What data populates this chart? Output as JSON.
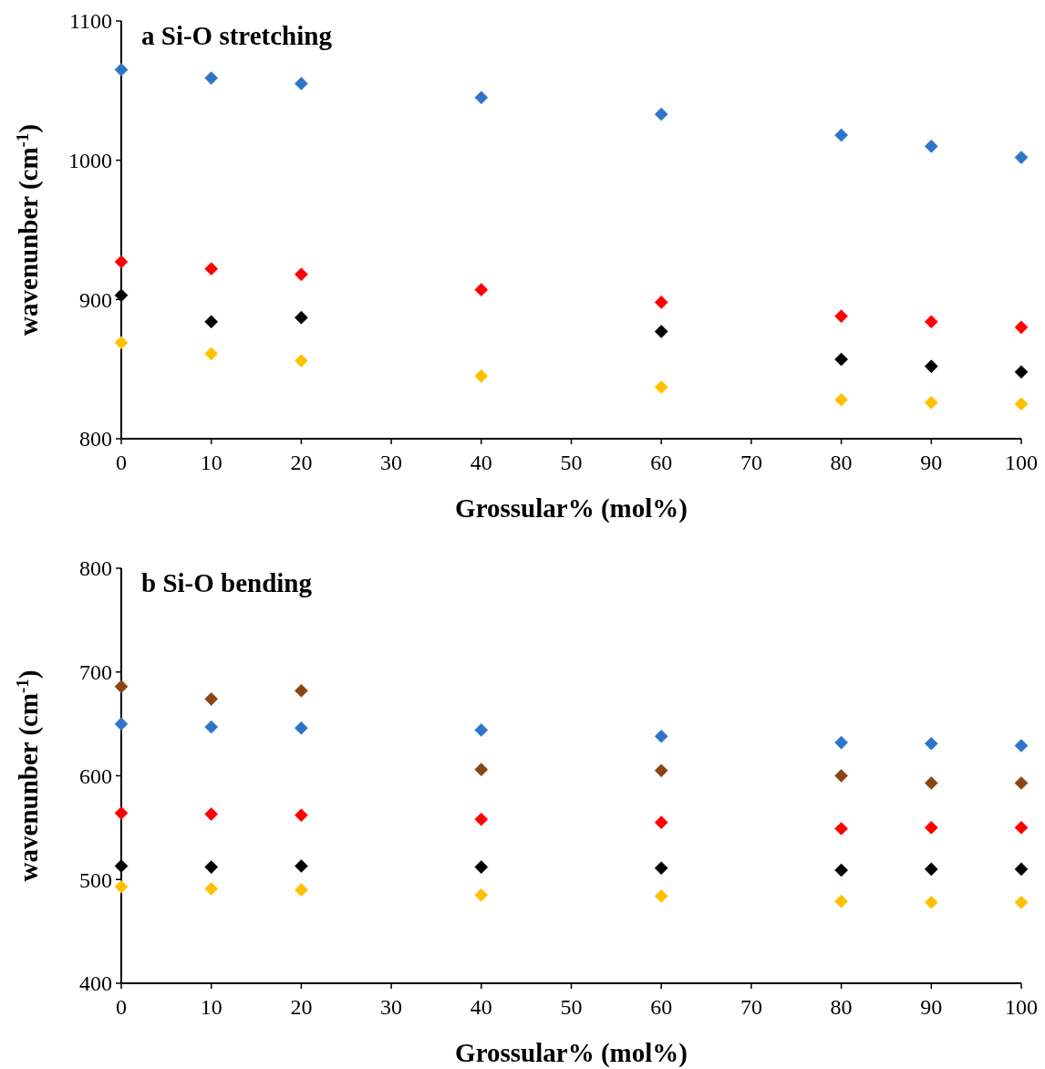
{
  "chart_data": [
    {
      "type": "scatter",
      "title": "a  Si-O stretching",
      "xlabel": "Grossular% (mol%)",
      "ylabel": "wavenunber (cm$^{-1}$)",
      "marker": "diamond",
      "grid": false,
      "xlim": [
        0,
        100
      ],
      "xticks": [
        0,
        10,
        20,
        30,
        40,
        50,
        60,
        70,
        80,
        90,
        100
      ],
      "ylim": [
        800,
        1100
      ],
      "yticks": [
        800,
        900,
        1000,
        1100
      ],
      "x": [
        0,
        10,
        20,
        40,
        60,
        80,
        90,
        100
      ],
      "series": [
        {
          "color": "#2e75c8",
          "values": [
            1065,
            1059,
            1055,
            1045,
            1033,
            1018,
            1010,
            1002
          ]
        },
        {
          "color": "#ff0000",
          "values": [
            927,
            922,
            918,
            907,
            898,
            888,
            884,
            880
          ]
        },
        {
          "color": "#000000",
          "values": [
            903,
            884,
            887,
            null,
            877,
            857,
            852,
            848
          ]
        },
        {
          "color": "#ffc000",
          "values": [
            869,
            861,
            856,
            845,
            837,
            828,
            826,
            825
          ]
        }
      ]
    },
    {
      "type": "scatter",
      "title": "b  Si-O bending",
      "xlabel": "Grossular% (mol%)",
      "ylabel": "wavenunber (cm$^{-1}$)",
      "marker": "diamond",
      "grid": false,
      "xlim": [
        0,
        100
      ],
      "xticks": [
        0,
        10,
        20,
        30,
        40,
        50,
        60,
        70,
        80,
        90,
        100
      ],
      "ylim": [
        400,
        800
      ],
      "yticks": [
        400,
        500,
        600,
        700,
        800
      ],
      "x": [
        0,
        10,
        20,
        40,
        60,
        80,
        90,
        100
      ],
      "series": [
        {
          "color": "#8b4513",
          "values": [
            686,
            674,
            682,
            606,
            605,
            600,
            593,
            593
          ]
        },
        {
          "color": "#2e75c8",
          "values": [
            650,
            647,
            646,
            644,
            638,
            632,
            631,
            629
          ]
        },
        {
          "color": "#ff0000",
          "values": [
            564,
            563,
            562,
            558,
            555,
            549,
            550,
            550
          ]
        },
        {
          "color": "#000000",
          "values": [
            513,
            512,
            513,
            512,
            511,
            509,
            510,
            510
          ]
        },
        {
          "color": "#ffc000",
          "values": [
            493,
            491,
            490,
            485,
            484,
            479,
            478,
            478
          ]
        }
      ]
    }
  ]
}
